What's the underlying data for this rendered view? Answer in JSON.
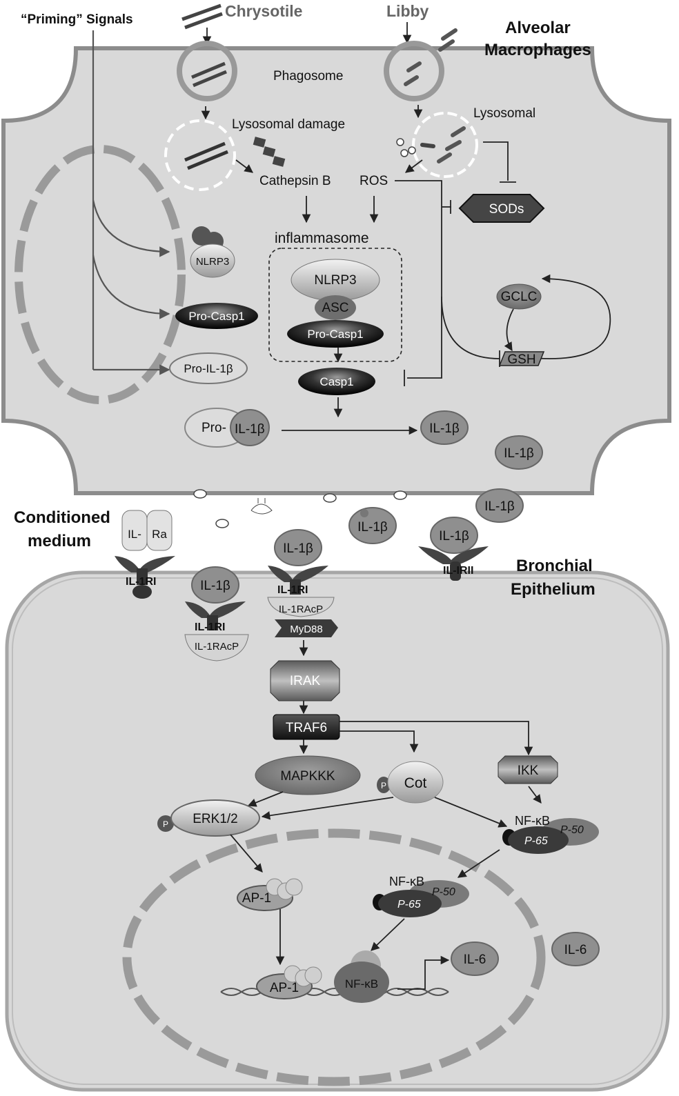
{
  "labels": {
    "priming": "“Priming” Signals",
    "chrysotile": "Chrysotile",
    "libby": "Libby",
    "alveolar1": "Alveolar",
    "alveolar2": "Macrophages",
    "phagosome": "Phagosome",
    "lysosomal_damage": "Lysosomal damage",
    "lysosomal": "Lysosomal",
    "cathepsin_b": "Cathepsin B",
    "ros": "ROS",
    "sods": "SODs",
    "inflammasome": "inflammasome",
    "nlrp3": "NLRP3",
    "asc": "ASC",
    "pro_casp1": "Pro-Casp1",
    "pro_il1b": "Pro-IL-1β",
    "casp1": "Casp1",
    "gclc": "GCLC",
    "gsh": "GSH",
    "pro": "Pro-",
    "il1b": "IL-1β",
    "conditioned1": "Conditioned",
    "conditioned2": "medium",
    "il_ra_left": "IL-",
    "il_ra_right": "Ra",
    "il1ri": "IL-1RI",
    "il1racp": "IL-1RAcP",
    "il_irii": "IL-IRII",
    "bronchial1": "Bronchial",
    "bronchial2": "Epithelium",
    "myd88": "MyD88",
    "irak": "IRAK",
    "traf6": "TRAF6",
    "mapkkk": "MAPKKK",
    "cot": "Cot",
    "ikk": "IKK",
    "erk": "ERK1/2",
    "p": "P",
    "nfkb": "NF-κB",
    "p50": "P-50",
    "p65": "P-65",
    "ap1": "AP-1",
    "il6": "IL-6"
  },
  "colors": {
    "cell_fill": "#d9d9d9",
    "cell_border": "#8c8c8c",
    "dark": "#3a3a3a",
    "mid": "#7a7a7a",
    "light": "#bdbdbd"
  }
}
